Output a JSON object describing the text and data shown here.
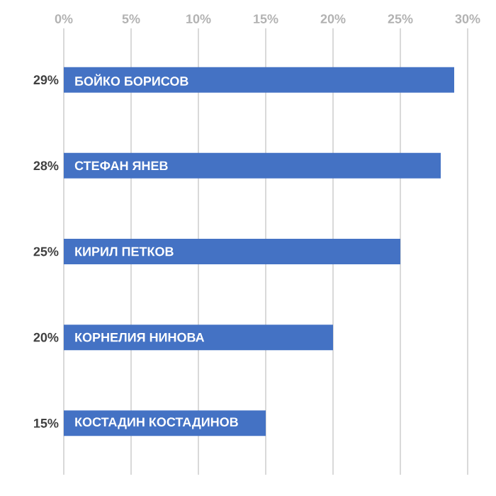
{
  "chart_data": {
    "type": "bar",
    "orientation": "horizontal",
    "categories": [
      "БОЙКО БОРИСОВ",
      "СТЕФАН ЯНЕВ",
      "КИРИЛ ПЕТКОВ",
      "КОРНЕЛИЯ НИНОВА",
      "КОСТАДИН КОСТАДИНОВ"
    ],
    "values": [
      29,
      28,
      25,
      20,
      15
    ],
    "value_labels": [
      "29%",
      "28%",
      "25%",
      "20%",
      "15%"
    ],
    "color": "#4472c4",
    "xlim": [
      0,
      30
    ],
    "xticks": [
      {
        "value": 0,
        "label": "0%"
      },
      {
        "value": 5,
        "label": "5%"
      },
      {
        "value": 10,
        "label": "10%"
      },
      {
        "value": 15,
        "label": "15%"
      },
      {
        "value": 20,
        "label": "20%"
      },
      {
        "value": 25,
        "label": "25%"
      },
      {
        "value": 30,
        "label": "30%"
      }
    ],
    "grid": "x"
  }
}
